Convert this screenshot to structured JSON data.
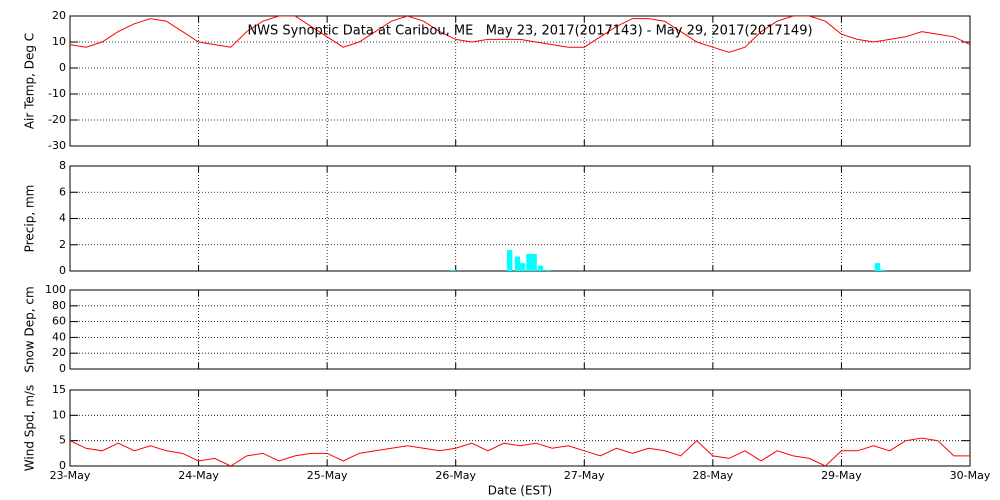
{
  "chart_data": [
    {
      "type": "line",
      "title": "NWS Synoptic Data at Caribou, ME   May 23, 2017(2017143) - May 29, 2017(2017149)",
      "ylabel": "Air Temp, Deg C",
      "xlim": [
        0,
        7
      ],
      "xticks": [
        0,
        1,
        2,
        3,
        4,
        5,
        6,
        7
      ],
      "ylim": [
        -30,
        20
      ],
      "yticks": [
        -30,
        -20,
        -10,
        0,
        10,
        20
      ],
      "grid": true,
      "x": [
        0,
        0.125,
        0.25,
        0.375,
        0.5,
        0.625,
        0.75,
        0.875,
        1,
        1.125,
        1.25,
        1.375,
        1.5,
        1.625,
        1.75,
        1.875,
        2,
        2.125,
        2.25,
        2.375,
        2.5,
        2.625,
        2.75,
        2.875,
        3,
        3.125,
        3.25,
        3.375,
        3.5,
        3.625,
        3.75,
        3.875,
        4,
        4.125,
        4.25,
        4.375,
        4.5,
        4.625,
        4.75,
        4.875,
        5,
        5.125,
        5.25,
        5.375,
        5.5,
        5.625,
        5.75,
        5.875,
        6,
        6.125,
        6.25,
        6.375,
        6.5,
        6.625,
        6.75,
        6.875,
        7
      ],
      "series": [
        {
          "color": "#ff0000",
          "values": [
            9,
            8,
            10,
            14,
            17,
            19,
            18,
            14,
            10,
            9,
            8,
            14,
            18,
            20,
            20,
            16,
            12,
            8,
            10,
            14,
            18,
            20,
            18,
            14,
            11,
            10,
            11,
            11,
            11,
            10,
            9,
            8,
            8,
            12,
            16,
            19,
            19,
            18,
            14,
            10,
            8,
            6,
            8,
            14,
            18,
            20,
            20,
            18,
            13,
            11,
            10,
            11,
            12,
            14,
            13,
            12,
            9
          ]
        }
      ]
    },
    {
      "type": "bar",
      "ylabel": "Precip, mm",
      "xlim": [
        0,
        7
      ],
      "xticks": [
        0,
        1,
        2,
        3,
        4,
        5,
        6,
        7
      ],
      "ylim": [
        0,
        8
      ],
      "yticks": [
        0,
        2,
        4,
        6,
        8
      ],
      "grid": true,
      "x": [
        2.98,
        3.42,
        3.48,
        3.52,
        3.57,
        3.61,
        3.66,
        3.72,
        6.28,
        6.32
      ],
      "values": [
        0.1,
        1.6,
        1.1,
        0.6,
        1.3,
        1.3,
        0.4,
        0.1,
        0.6,
        0.1
      ],
      "color": "#00ffff"
    },
    {
      "type": "line",
      "ylabel": "Snow Dep, cm",
      "xlim": [
        0,
        7
      ],
      "xticks": [
        0,
        1,
        2,
        3,
        4,
        5,
        6,
        7
      ],
      "ylim": [
        0,
        100
      ],
      "yticks": [
        0,
        20,
        40,
        60,
        80,
        100
      ],
      "grid": true,
      "series": []
    },
    {
      "type": "line",
      "ylabel": "Wind Spd, m/s",
      "xlabel": "Date (EST)",
      "xlim": [
        0,
        7
      ],
      "xticks": [
        {
          "value": 0,
          "label": "23-May"
        },
        {
          "value": 1,
          "label": "24-May"
        },
        {
          "value": 2,
          "label": "25-May"
        },
        {
          "value": 3,
          "label": "26-May"
        },
        {
          "value": 4,
          "label": "27-May"
        },
        {
          "value": 5,
          "label": "28-May"
        },
        {
          "value": 6,
          "label": "29-May"
        },
        {
          "value": 7,
          "label": "30-May"
        }
      ],
      "ylim": [
        0,
        15
      ],
      "yticks": [
        0,
        5,
        10,
        15
      ],
      "grid": true,
      "x": [
        0,
        0.125,
        0.25,
        0.375,
        0.5,
        0.625,
        0.75,
        0.875,
        1,
        1.125,
        1.25,
        1.375,
        1.5,
        1.625,
        1.75,
        1.875,
        2,
        2.125,
        2.25,
        2.375,
        2.5,
        2.625,
        2.75,
        2.875,
        3,
        3.125,
        3.25,
        3.375,
        3.5,
        3.625,
        3.75,
        3.875,
        4,
        4.125,
        4.25,
        4.375,
        4.5,
        4.625,
        4.75,
        4.875,
        5,
        5.125,
        5.25,
        5.375,
        5.5,
        5.625,
        5.75,
        5.875,
        6,
        6.125,
        6.25,
        6.375,
        6.5,
        6.625,
        6.75,
        6.875,
        7
      ],
      "series": [
        {
          "color": "#ff0000",
          "values": [
            5,
            3.5,
            3,
            4.5,
            3,
            4,
            3,
            2.5,
            1,
            1.5,
            0,
            2,
            2.5,
            1,
            2,
            2.5,
            2.5,
            1,
            2.5,
            3,
            3.5,
            4,
            3.5,
            3,
            3.5,
            4.5,
            3,
            4.5,
            4,
            4.5,
            3.5,
            4,
            3,
            2,
            3.5,
            2.5,
            3.5,
            3,
            2,
            5,
            2,
            1.5,
            3,
            1,
            3,
            2,
            1.5,
            0,
            3,
            3,
            4,
            3,
            5,
            5.5,
            5,
            2,
            2
          ]
        }
      ]
    }
  ]
}
